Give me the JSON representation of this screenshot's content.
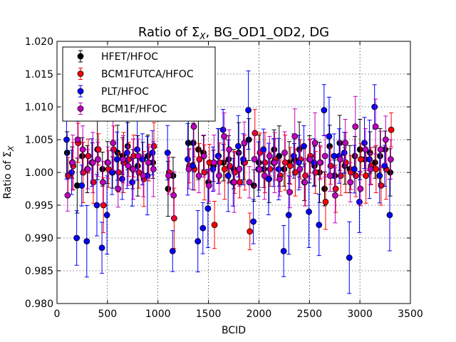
{
  "chart_data": {
    "type": "scatter",
    "title_prefix": "Ratio of ",
    "title_symbol": "Σ",
    "title_sub": "X",
    "title_suffix": ", BG_OD1_OD2, DG",
    "xlabel": "BCID",
    "ylabel_prefix": "Ratio of ",
    "ylabel_symbol": "Σ",
    "ylabel_sub": "X",
    "xlim": [
      0,
      3500
    ],
    "ylim": [
      0.98,
      1.02
    ],
    "xticks": [
      0,
      500,
      1000,
      1500,
      2000,
      2500,
      3000,
      3500
    ],
    "xtick_labels": [
      "0",
      "500",
      "1000",
      "1500",
      "2000",
      "2500",
      "3000",
      "3500"
    ],
    "yticks": [
      0.98,
      0.985,
      0.99,
      0.995,
      1.0,
      1.005,
      1.01,
      1.015,
      1.02
    ],
    "ytick_labels": [
      "0.980",
      "0.985",
      "0.990",
      "0.995",
      "1.000",
      "1.005",
      "1.010",
      "1.015",
      "1.020"
    ],
    "grid": true,
    "legend_position": "top-left",
    "error_bars": true,
    "series": [
      {
        "name": "HFET/HFOC",
        "color": "#000000",
        "x": [
          100,
          150,
          200,
          250,
          300,
          350,
          400,
          450,
          500,
          550,
          600,
          650,
          700,
          750,
          800,
          850,
          900,
          950,
          1100,
          1150,
          1300,
          1350,
          1400,
          1450,
          1500,
          1550,
          1600,
          1650,
          1700,
          1750,
          1800,
          1850,
          1900,
          1950,
          2000,
          2050,
          2100,
          2150,
          2200,
          2250,
          2300,
          2350,
          2400,
          2450,
          2500,
          2550,
          2600,
          2650,
          2700,
          2750,
          2800,
          2850,
          2900,
          2950,
          3000,
          3050,
          3100,
          3150,
          3200,
          3250,
          3300
        ],
        "y": [
          1.003,
          1.0015,
          0.998,
          1.0025,
          1.0005,
          1.0015,
          1.0035,
          1.0005,
          1.0015,
          1.0,
          1.003,
          1.0025,
          1.004,
          1.0005,
          1.001,
          1.002,
          1.0025,
          1.0015,
          0.9975,
          0.9995,
          1.0045,
          1.0045,
          1.0035,
          1.003,
          0.9985,
          1.001,
          1.0025,
          1.0015,
          1.002,
          1.0005,
          1.003,
          1.0015,
          1.005,
          0.998,
          1.0015,
          1.0005,
          0.999,
          1.0035,
          1.0025,
          1.0005,
          1.0015,
          1.002,
          1.0035,
          0.9985,
          1.002,
          1.001,
          1.0,
          0.9975,
          1.004,
          0.9995,
          1.0045,
          1.001,
          1.0005,
          1.0025,
          1.0035,
          1.002,
          1.003,
          1.0015,
          1.0025,
          1.0035,
          1.0
        ]
      },
      {
        "name": "BCM1FUTCA/HFOC",
        "color": "#ff0000",
        "x": [
          110,
          160,
          210,
          260,
          310,
          360,
          410,
          460,
          510,
          560,
          610,
          660,
          710,
          760,
          810,
          860,
          910,
          960,
          1110,
          1160,
          1310,
          1360,
          1410,
          1460,
          1510,
          1560,
          1610,
          1660,
          1710,
          1760,
          1810,
          1860,
          1910,
          1960,
          2010,
          2060,
          2110,
          2160,
          2210,
          2260,
          2310,
          2360,
          2410,
          2460,
          2510,
          2560,
          2610,
          2660,
          2710,
          2760,
          2810,
          2860,
          2910,
          2960,
          3010,
          3060,
          3110,
          3160,
          3210,
          3260,
          3310
        ],
        "y": [
          0.9995,
          1.001,
          1.0045,
          1.0,
          1.0025,
          0.9985,
          1.0035,
          0.995,
          1.0005,
          1.0035,
          1.0,
          1.0015,
          1.002,
          1.0025,
          1.0,
          0.999,
          1.0015,
          1.004,
          1.0,
          0.993,
          1.001,
          1.0005,
          1.002,
          1.0,
          1.0015,
          0.992,
          1.0015,
          1.0005,
          1.001,
          1.0,
          0.9985,
          1.0015,
          0.991,
          1.006,
          1.003,
          1.0015,
          1.0005,
          1.002,
          0.9995,
          1.0015,
          1.001,
          1.0,
          1.002,
          0.9995,
          1.0025,
          1.0,
          1.0015,
          0.9955,
          1.001,
          0.9975,
          0.9995,
          1.0015,
          1.0,
          0.9995,
          1.002,
          0.9995,
          1.001,
          1.0005,
          0.998,
          1.0005,
          1.0065
        ]
      },
      {
        "name": "PLT/HFOC",
        "color": "#0000ff",
        "x": [
          95,
          145,
          195,
          245,
          295,
          345,
          395,
          445,
          495,
          545,
          595,
          645,
          695,
          745,
          795,
          845,
          895,
          945,
          1095,
          1145,
          1295,
          1345,
          1395,
          1445,
          1495,
          1545,
          1595,
          1645,
          1695,
          1745,
          1795,
          1845,
          1895,
          1945,
          1995,
          2045,
          2095,
          2145,
          2195,
          2245,
          2295,
          2345,
          2395,
          2445,
          2495,
          2545,
          2595,
          2645,
          2695,
          2745,
          2795,
          2845,
          2895,
          2945,
          2995,
          3045,
          3095,
          3145,
          3195,
          3245,
          3295
        ],
        "y": [
          1.005,
          1.0,
          0.99,
          0.998,
          0.9895,
          1.0015,
          0.995,
          0.9885,
          0.9935,
          1.0,
          1.002,
          0.999,
          1.003,
          0.9985,
          1.0035,
          1.002,
          0.9995,
          1.003,
          1.003,
          0.988,
          1.002,
          1.001,
          0.9895,
          0.9915,
          0.9945,
          1.0005,
          1.0025,
          1.0065,
          0.9995,
          0.9985,
          1.004,
          1.002,
          1.0095,
          0.9925,
          1.0005,
          1.0035,
          0.999,
          1.0015,
          1.0005,
          0.988,
          0.9935,
          1.0025,
          1.0015,
          1.004,
          0.994,
          1.0015,
          0.992,
          1.0095,
          1.0055,
          1.0025,
          1.0025,
          1.003,
          0.987,
          1.0005,
          0.9955,
          1.0045,
          1.002,
          1.01,
          0.9995,
          1.001,
          0.9935
        ]
      },
      {
        "name": "BCM1F/HFOC",
        "color": "#bf00bf",
        "x": [
          105,
          155,
          205,
          255,
          305,
          355,
          405,
          455,
          505,
          555,
          605,
          655,
          705,
          755,
          805,
          855,
          905,
          955,
          1105,
          1155,
          1305,
          1355,
          1405,
          1455,
          1505,
          1555,
          1605,
          1655,
          1705,
          1755,
          1805,
          1855,
          1905,
          1955,
          2005,
          2055,
          2105,
          2155,
          2205,
          2255,
          2305,
          2355,
          2405,
          2455,
          2505,
          2555,
          2605,
          2655,
          2705,
          2755,
          2805,
          2855,
          2905,
          2955,
          3005,
          3055,
          3105,
          3155,
          3205,
          3255,
          3305
        ],
        "y": [
          0.9965,
          1.0015,
          1.005,
          1.0035,
          1.0005,
          1.0015,
          1.002,
          0.9985,
          1.0015,
          1.0045,
          0.9975,
          1.002,
          1.001,
          1.0005,
          1.0025,
          0.9995,
          1.0015,
          1.0005,
          0.9995,
          0.9965,
          1.0005,
          1.007,
          0.9995,
          1.0025,
          0.998,
          1.0015,
          0.9995,
          1.0055,
          1.0035,
          0.9985,
          1.0005,
          1.0045,
          0.9985,
          1.002,
          1.0005,
          0.9995,
          1.0025,
          1.0015,
          0.999,
          1.003,
          0.997,
          1.0055,
          1.0005,
          0.9985,
          1.002,
          1.0045,
          1.0015,
          1.0025,
          0.9995,
          0.9965,
          1.002,
          1.0045,
          0.9985,
          1.007,
          0.9975,
          1.0035,
          1.0005,
          1.007,
          1.0035,
          1.005,
          1.002
        ]
      }
    ]
  }
}
